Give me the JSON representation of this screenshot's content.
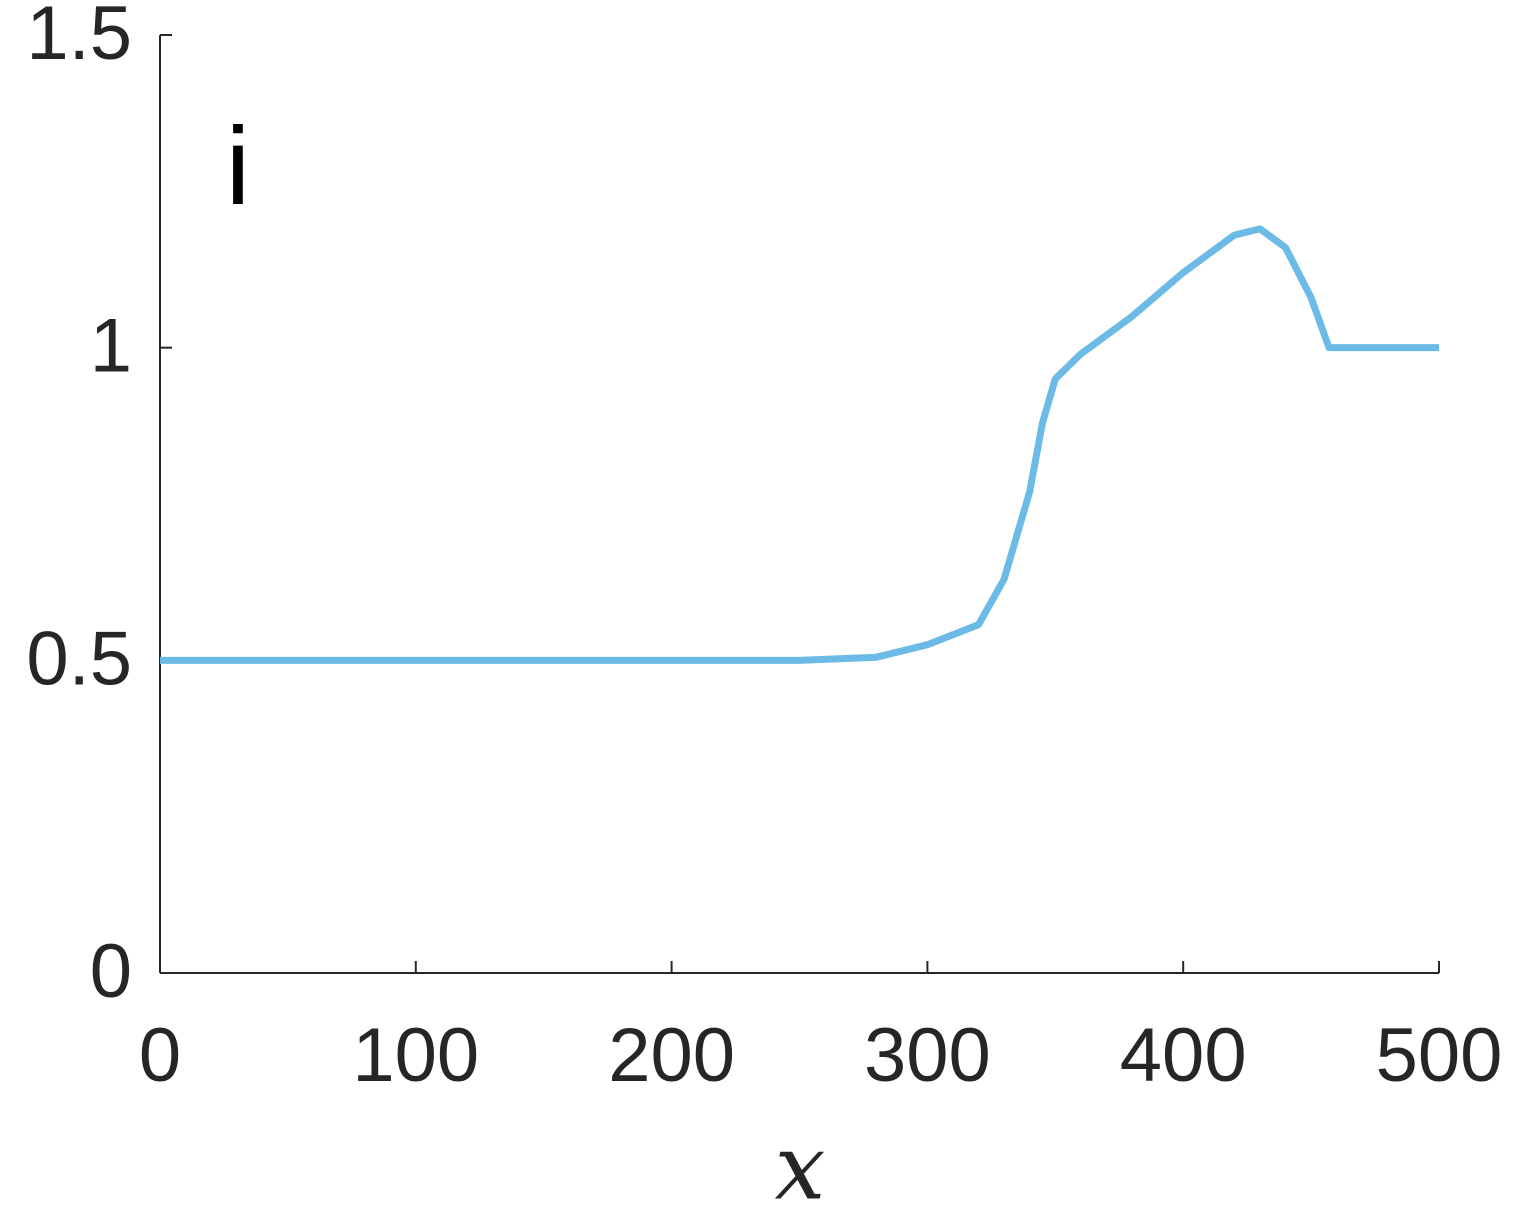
{
  "chart_data": {
    "type": "line",
    "annotation": "i",
    "x_label": "x",
    "x": [
      0,
      250,
      280,
      300,
      320,
      330,
      340,
      345,
      350,
      360,
      380,
      400,
      420,
      430,
      440,
      450,
      457,
      500
    ],
    "series": [
      {
        "color": "#6cbbe6",
        "values": [
          0.5,
          0.5,
          0.505,
          0.525,
          0.557,
          0.63,
          0.77,
          0.88,
          0.95,
          0.99,
          1.05,
          1.12,
          1.18,
          1.19,
          1.16,
          1.08,
          1.0,
          1.0
        ]
      }
    ],
    "xlim": [
      0,
      500
    ],
    "xticks": [
      0,
      100,
      200,
      300,
      400,
      500
    ],
    "ylim": [
      0,
      1.5
    ],
    "yticks": [
      0,
      0.5,
      1,
      1.5
    ]
  }
}
